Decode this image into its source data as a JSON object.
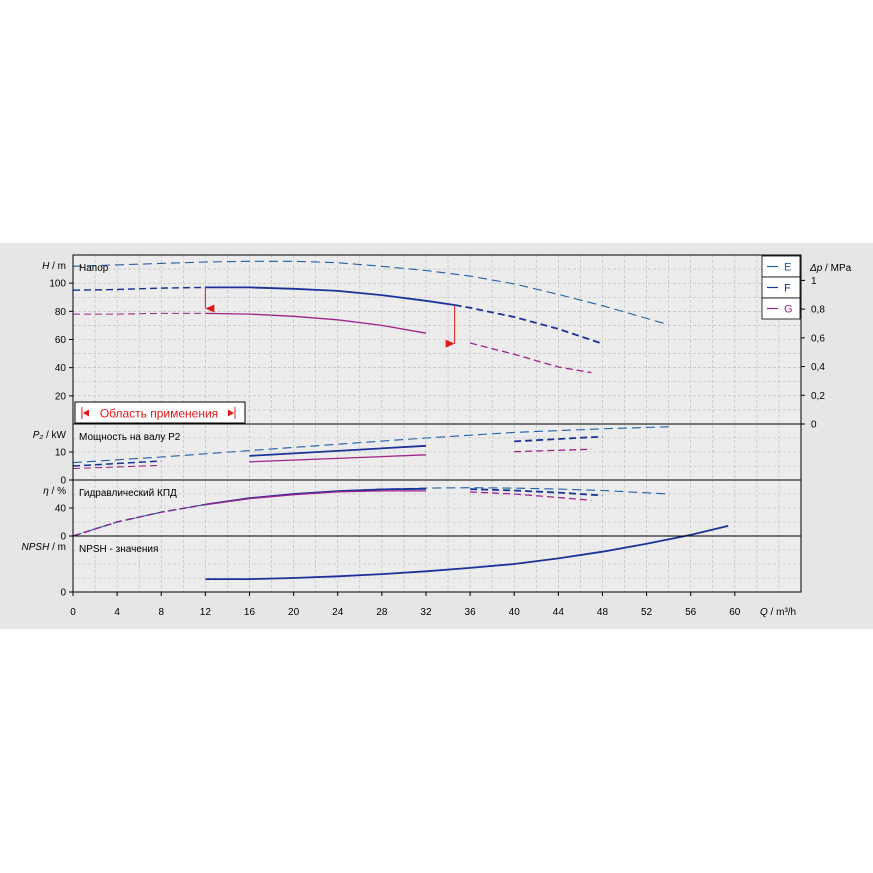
{
  "colors": {
    "background": "#e6e6e6",
    "plot_background": "#ececec",
    "grid": "#b9b9b9",
    "E": "#1f5fa8",
    "F": "#1a3399",
    "G": "#a0228c",
    "range": "#e01818"
  },
  "chart_data": {
    "type": "line",
    "x_axis": {
      "symbol": "Q",
      "unit": "m³/h",
      "ticks": [
        0,
        4,
        8,
        12,
        16,
        20,
        24,
        28,
        32,
        36,
        40,
        44,
        48,
        52,
        56,
        60
      ],
      "xlim": [
        0,
        66
      ]
    },
    "legend": {
      "position": "top-right",
      "entries": [
        "E",
        "F",
        "G"
      ]
    },
    "application_range": {
      "label": "Область применения",
      "q_min": 12,
      "q_max": 34.6
    },
    "panels": [
      {
        "id": "head",
        "title": "Напор",
        "y_symbol": "H",
        "y_unit": "m",
        "y_ticks": [
          20,
          40,
          60,
          80,
          100
        ],
        "ylim": [
          0,
          120
        ],
        "y2_symbol": "Δp",
        "y2_unit": "MPa",
        "y2_ticks": [
          "0",
          "0,2",
          "0,4",
          "0,6",
          "0,8",
          "1"
        ],
        "y2_values": [
          0,
          0.2,
          0.4,
          0.6,
          0.8,
          1.0
        ],
        "series": [
          {
            "name": "E",
            "x": [
              0,
              4,
              8,
              12,
              16,
              20,
              24,
              28,
              32,
              36,
              40,
              44,
              48,
              52,
              54
            ],
            "y": [
              112,
              113,
              114,
              115,
              115.5,
              115.5,
              114.5,
              112,
              109,
              105,
              99.5,
              92,
              84,
              75,
              70.5
            ]
          },
          {
            "name": "F",
            "x": [
              0,
              4,
              8,
              12,
              16,
              20,
              24,
              28,
              32,
              34.6,
              36,
              40,
              44,
              48
            ],
            "y": [
              95,
              95.5,
              96.5,
              97,
              97,
              96,
              94.5,
              91.5,
              87.5,
              84.5,
              82.5,
              76,
              67.5,
              57
            ]
          },
          {
            "name": "G",
            "x": [
              0,
              4,
              8,
              12,
              16,
              20,
              24,
              28,
              32,
              36,
              40,
              44,
              47
            ],
            "y": [
              78,
              78,
              78.5,
              78.5,
              78,
              76.5,
              74,
              70,
              64.5,
              57.5,
              49.5,
              40.5,
              36.5
            ]
          }
        ]
      },
      {
        "id": "power",
        "title": "Мощность на валу P2",
        "y_symbol": "P₂",
        "y_unit": "kW",
        "y_ticks": [
          0,
          10
        ],
        "ylim": [
          0,
          20
        ],
        "series": [
          {
            "name": "E",
            "x": [
              0,
              8,
              16,
              24,
              32,
              40,
              48,
              54
            ],
            "y": [
              6.2,
              8.2,
              10.5,
              12.8,
              15,
              17,
              18.3,
              19
            ]
          },
          {
            "name": "F",
            "x": [
              0,
              8,
              16,
              24,
              32,
              40,
              48
            ],
            "y": [
              5,
              6.8,
              8.6,
              10.4,
              12.2,
              13.8,
              15.5
            ]
          },
          {
            "name": "G",
            "x": [
              0,
              8,
              16,
              24,
              32,
              40,
              47
            ],
            "y": [
              4.1,
              5.2,
              6.5,
              7.7,
              9,
              10.1,
              11
            ]
          }
        ]
      },
      {
        "id": "efficiency",
        "title": "Гидравлический КПД",
        "y_symbol": "η",
        "y_unit": "%",
        "y_ticks": [
          0,
          40
        ],
        "ylim": [
          0,
          80
        ],
        "series": [
          {
            "name": "E",
            "x": [
              0,
              4,
              8,
              12,
              16,
              20,
              24,
              28,
              32,
              36,
              40,
              44,
              48,
              54
            ],
            "y": [
              0,
              20,
              34,
              45,
              54,
              60,
              64,
              67,
              68.5,
              69,
              68.5,
              67,
              65,
              60
            ]
          },
          {
            "name": "F",
            "x": [
              0,
              4,
              8,
              12,
              16,
              20,
              24,
              28,
              32,
              36,
              40,
              44,
              48
            ],
            "y": [
              0,
              20,
              34,
              45,
              54,
              60,
              64,
              66.5,
              67.5,
              67,
              65,
              62,
              58
            ]
          },
          {
            "name": "G",
            "x": [
              0,
              4,
              8,
              12,
              16,
              20,
              24,
              28,
              32,
              36,
              40,
              44,
              47
            ],
            "y": [
              0,
              20,
              34,
              45,
              53.5,
              59,
              63,
              64.5,
              64.5,
              63,
              60,
              55,
              51
            ]
          }
        ]
      },
      {
        "id": "npsh",
        "title": "NPSH - значения",
        "y_symbol": "NPSH",
        "y_unit": "m",
        "y_ticks": [
          0
        ],
        "ylim": [
          0,
          10
        ],
        "series": [
          {
            "name": "F",
            "x": [
              12,
              16,
              20,
              24,
              28,
              32,
              36,
              40,
              44,
              48,
              52,
              56,
              59.4
            ],
            "y": [
              2.3,
              2.3,
              2.5,
              2.8,
              3.2,
              3.7,
              4.3,
              5,
              6,
              7.2,
              8.6,
              10.2,
              11.8
            ]
          }
        ]
      }
    ]
  }
}
